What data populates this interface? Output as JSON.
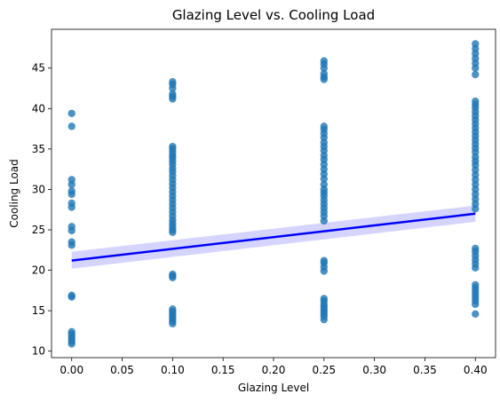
{
  "chart_data": {
    "type": "scatter",
    "title": "Glazing Level vs. Cooling Load",
    "xlabel": "Glazing Level",
    "ylabel": "Cooling Load",
    "xlim": [
      -0.02,
      0.42
    ],
    "ylim": [
      9.2,
      49.8
    ],
    "xticks": [
      "0.00",
      "0.05",
      "0.10",
      "0.15",
      "0.20",
      "0.25",
      "0.30",
      "0.35",
      "0.40"
    ],
    "yticks": [
      "10",
      "15",
      "20",
      "25",
      "30",
      "35",
      "40",
      "45"
    ],
    "grid": false,
    "colors": {
      "points": "#1f77b4",
      "regression": "#0000ff",
      "band": "#aaaaff"
    },
    "series": [
      {
        "x": 0.0,
        "y": [
          39.4,
          37.8,
          31.2,
          30.6,
          29.8,
          29.4,
          28.3,
          27.8,
          25.4,
          24.9,
          23.5,
          23.1,
          16.9,
          16.7,
          12.4,
          12.1,
          11.8,
          11.5,
          11.2,
          10.9
        ]
      },
      {
        "x": 0.1,
        "y": [
          43.3,
          43.0,
          42.5,
          41.8,
          41.5,
          41.2,
          35.3,
          35.0,
          34.6,
          34.2,
          33.9,
          33.5,
          33.1,
          32.6,
          32.2,
          31.7,
          31.2,
          30.7,
          30.2,
          29.7,
          29.2,
          28.7,
          28.2,
          27.7,
          27.2,
          26.7,
          26.2,
          25.8,
          25.4,
          25.0,
          24.7,
          19.5,
          19.3,
          19.1,
          15.2,
          14.9,
          14.6,
          14.3,
          14.0,
          13.7,
          13.4
        ]
      },
      {
        "x": 0.25,
        "y": [
          45.9,
          45.5,
          45.0,
          44.3,
          43.9,
          43.6,
          37.8,
          37.4,
          36.9,
          36.4,
          35.8,
          35.3,
          34.8,
          34.2,
          33.7,
          33.1,
          32.5,
          31.9,
          31.3,
          30.6,
          30.0,
          29.6,
          29.2,
          28.7,
          28.2,
          27.7,
          27.2,
          26.7,
          26.1,
          21.2,
          20.9,
          20.4,
          19.9,
          16.5,
          16.2,
          15.8,
          15.5,
          15.2,
          14.9,
          14.6,
          14.3,
          13.9
        ]
      },
      {
        "x": 0.4,
        "y": [
          48.0,
          47.4,
          46.8,
          46.2,
          45.6,
          45.0,
          44.2,
          40.9,
          40.5,
          40.1,
          39.6,
          39.1,
          38.6,
          38.1,
          37.6,
          37.1,
          36.6,
          36.1,
          35.6,
          35.1,
          34.6,
          34.0,
          33.5,
          33.0,
          32.4,
          31.8,
          31.2,
          30.6,
          30.0,
          29.4,
          28.8,
          28.2,
          27.6,
          22.7,
          22.3,
          21.8,
          21.3,
          20.8,
          20.3,
          18.2,
          17.8,
          17.4,
          17.0,
          16.6,
          16.2,
          15.8,
          14.6
        ]
      }
    ],
    "regression": {
      "x": [
        0.0,
        0.4
      ],
      "y": [
        21.2,
        27.0
      ],
      "band_lower": [
        20.2,
        26.0
      ],
      "band_upper": [
        22.3,
        28.0
      ]
    }
  }
}
